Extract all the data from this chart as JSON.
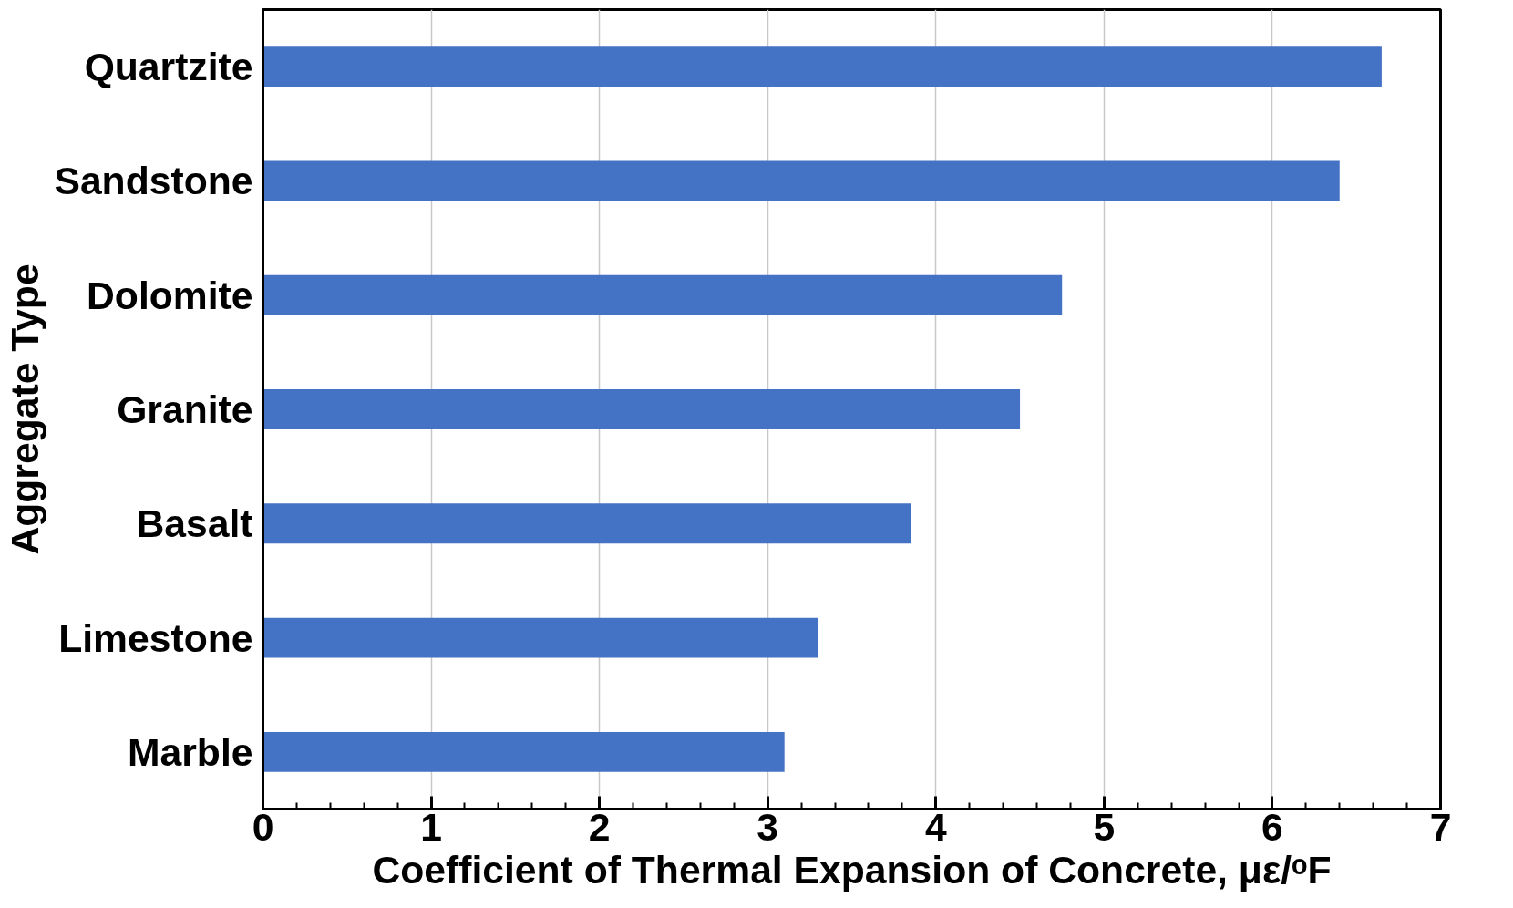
{
  "chart_data": {
    "type": "bar",
    "orientation": "horizontal",
    "categories": [
      "Quartzite",
      "Sandstone",
      "Dolomite",
      "Granite",
      "Basalt",
      "Limestone",
      "Marble"
    ],
    "values": [
      6.65,
      6.4,
      4.75,
      4.5,
      3.85,
      3.3,
      3.1
    ],
    "color": "#4472c4",
    "xlabel": "Coefficient of Thermal Expansion of Concrete, με/ᵒF",
    "ylabel": "Aggregate Type",
    "xlim": [
      0,
      7
    ],
    "xticks": [
      0,
      1,
      2,
      3,
      4,
      5,
      6,
      7
    ],
    "grid": "x"
  }
}
